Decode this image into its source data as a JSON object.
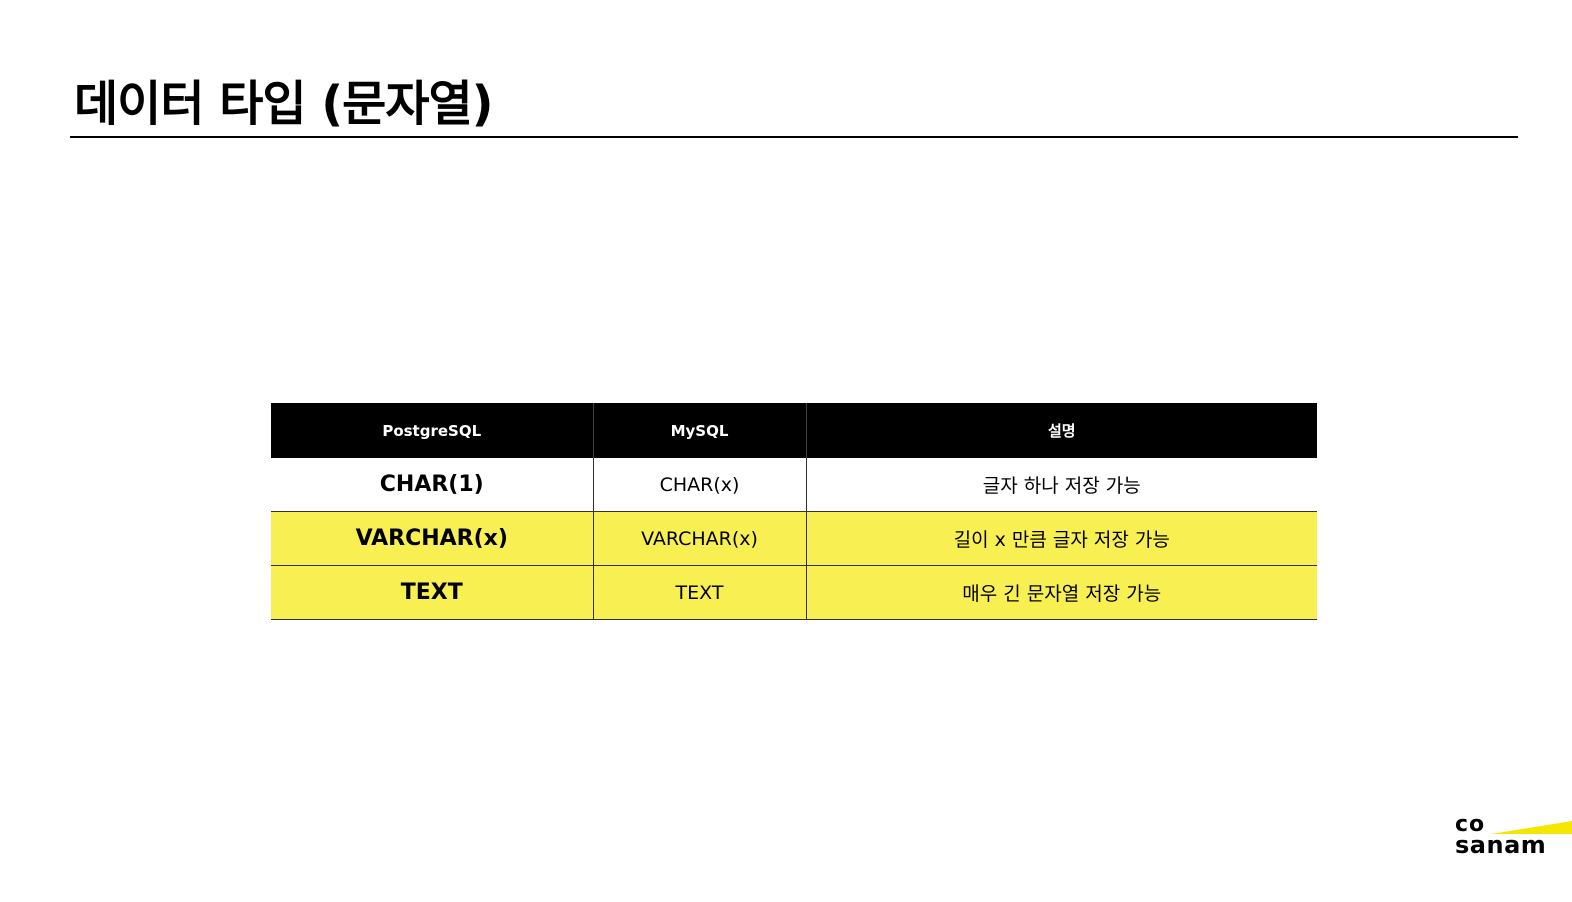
{
  "page": {
    "title": "데이터 타입 (문자열)"
  },
  "table": {
    "headers": [
      "PostgreSQL",
      "MySQL",
      "설명"
    ],
    "rows": [
      {
        "postgres": "CHAR(1)",
        "mysql": "CHAR(x)",
        "desc": "글자 하나 저장 가능",
        "highlight": false
      },
      {
        "postgres": "VARCHAR(x)",
        "mysql": "VARCHAR(x)",
        "desc": "길이 x 만큼 글자 저장 가능",
        "highlight": true
      },
      {
        "postgres": "TEXT",
        "mysql": "TEXT",
        "desc": "매우 긴 문자열 저장 가능",
        "highlight": true
      }
    ]
  },
  "logo": {
    "line1": "co",
    "line2": "sanam"
  },
  "colors": {
    "highlight": "#f8ef52",
    "header_bg": "#000000",
    "header_text": "#ffffff",
    "brand_accent": "#f5e600"
  }
}
